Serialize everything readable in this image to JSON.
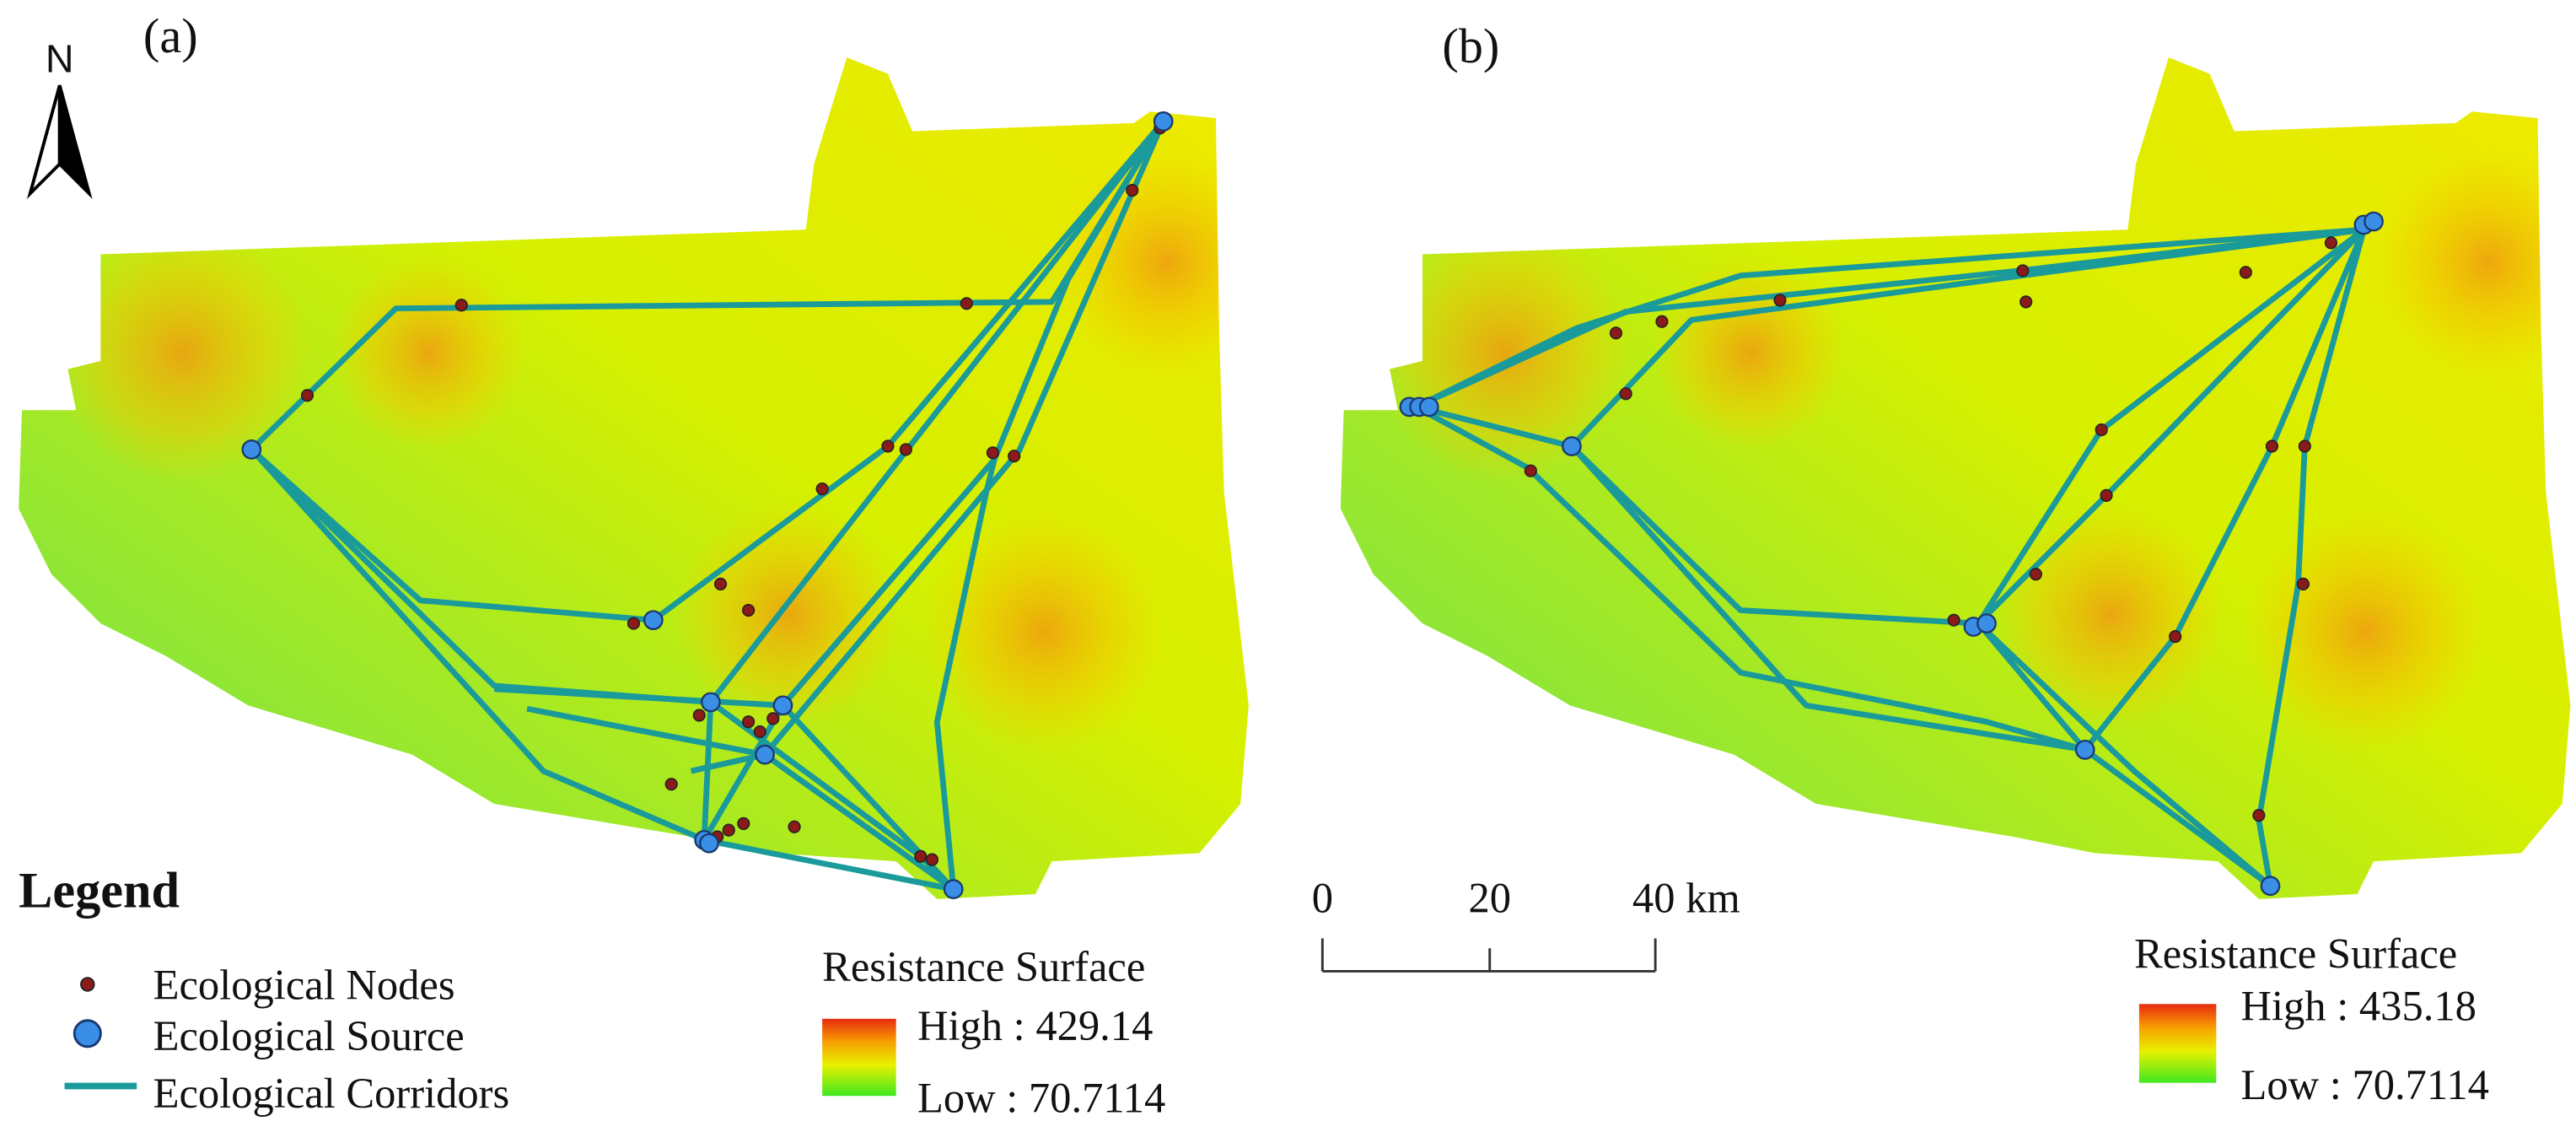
{
  "north": "N",
  "panels": [
    {
      "label": "(a)",
      "resistance": {
        "title": "Resistance Surface",
        "high": "High : 429.14",
        "low": "Low : 70.7114"
      }
    },
    {
      "label": "(b)",
      "resistance": {
        "title": "Resistance Surface",
        "high": "High : 435.18",
        "low": "Low : 70.7114"
      }
    }
  ],
  "legend": {
    "title": "Legend",
    "items": [
      "Ecological Nodes",
      "Ecological Source",
      "Ecological Corridors"
    ]
  },
  "scale_bar": [
    "0",
    "20",
    "40 km"
  ]
}
